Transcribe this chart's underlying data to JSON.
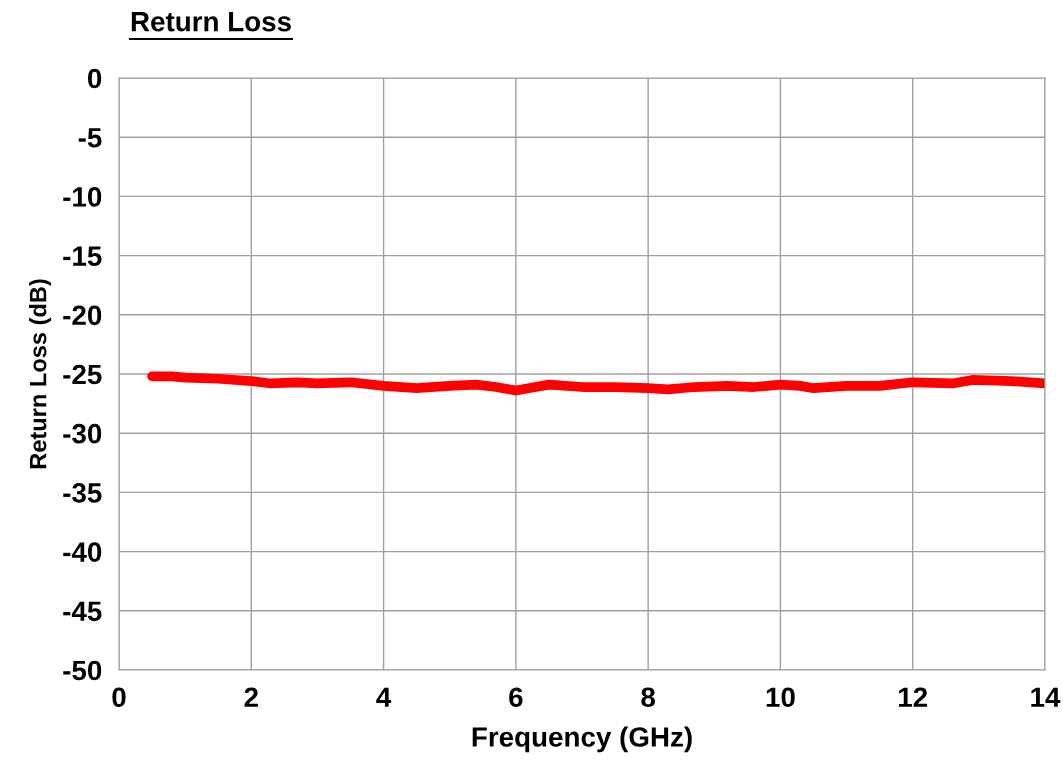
{
  "chart_data": {
    "type": "line",
    "title": "Return Loss",
    "xlabel": "Frequency (GHz)",
    "ylabel": "Return Loss (dB)",
    "x": [
      0.5,
      0.8,
      1.0,
      1.5,
      2.0,
      2.3,
      2.7,
      3.0,
      3.5,
      4.0,
      4.5,
      5.0,
      5.4,
      5.7,
      6.0,
      6.5,
      7.0,
      7.5,
      8.0,
      8.3,
      8.7,
      9.2,
      9.6,
      10.0,
      10.3,
      10.5,
      11.0,
      11.5,
      12.0,
      12.6,
      12.9,
      13.5,
      14.0
    ],
    "series": [
      {
        "color": "#ff0000",
        "values": [
          -25.2,
          -25.2,
          -25.3,
          -25.4,
          -25.6,
          -25.8,
          -25.7,
          -25.8,
          -25.7,
          -26.0,
          -26.2,
          -26.0,
          -25.9,
          -26.1,
          -26.4,
          -25.9,
          -26.1,
          -26.1,
          -26.2,
          -26.3,
          -26.1,
          -26.0,
          -26.1,
          -25.9,
          -26.0,
          -26.2,
          -26.0,
          -26.0,
          -25.7,
          -25.8,
          -25.5,
          -25.6,
          -25.8
        ]
      }
    ],
    "xlim": [
      0,
      14
    ],
    "xticks": [
      0,
      2,
      4,
      6,
      8,
      10,
      12,
      14
    ],
    "ylim": [
      -50,
      0
    ],
    "yticks": [
      -50,
      -45,
      -40,
      -35,
      -30,
      -25,
      -20,
      -15,
      -10,
      -5,
      0
    ],
    "grid": true,
    "legend": false,
    "marker": "none",
    "line_style": "solid"
  }
}
